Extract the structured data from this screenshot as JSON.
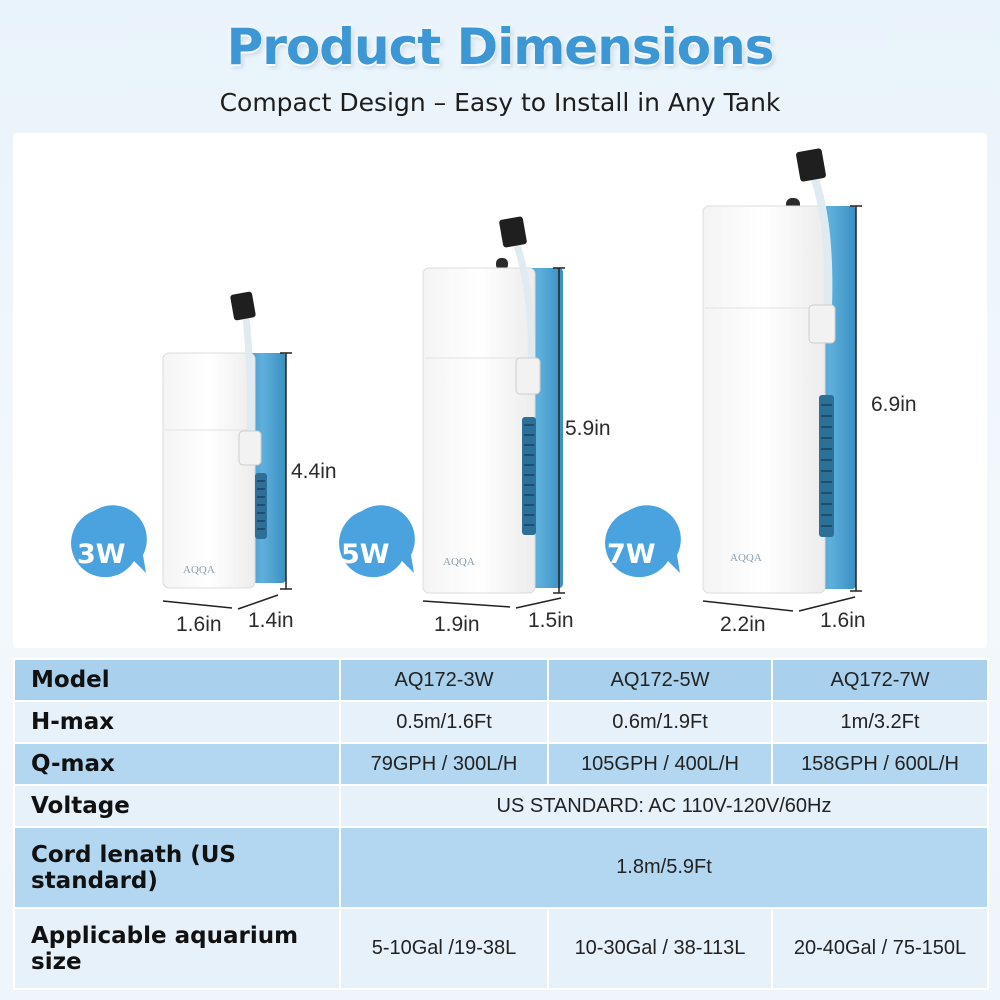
{
  "header": {
    "title": "Product Dimensions",
    "subtitle": "Compact Design – Easy to Install in Any Tank"
  },
  "products": [
    {
      "badge": "3W",
      "height": "4.4in",
      "width": "1.6in",
      "depth": "1.4in",
      "logo": "AQQA"
    },
    {
      "badge": "5W",
      "height": "5.9in",
      "width": "1.9in",
      "depth": "1.5in",
      "logo": "AQQA"
    },
    {
      "badge": "7W",
      "height": "6.9in",
      "width": "2.2in",
      "depth": "1.6in",
      "logo": "AQQA"
    }
  ],
  "colors": {
    "title": "#3d97d4",
    "badge": "#4aa3df",
    "pump_blue": "#4a9fcf",
    "table_dark": "#b3d7f1",
    "table_light": "#e6f1fa"
  },
  "specs": {
    "rows": [
      {
        "label": "Model",
        "values": [
          "AQ172-3W",
          "AQ172-5W",
          "AQ172-7W"
        ]
      },
      {
        "label": "H-max",
        "values": [
          "0.5m/1.6Ft",
          "0.6m/1.9Ft",
          "1m/3.2Ft"
        ]
      },
      {
        "label": "Q-max",
        "values": [
          "79GPH / 300L/H",
          "105GPH / 400L/H",
          "158GPH / 600L/H"
        ]
      },
      {
        "label": "Voltage",
        "merged": "US STANDARD: AC 110V-120V/60Hz"
      },
      {
        "label": "Cord lenath (US standard)",
        "merged": "1.8m/5.9Ft"
      },
      {
        "label": "Applicable aquarium size",
        "values": [
          "5-10Gal /19-38L",
          "10-30Gal / 38-113L",
          "20-40Gal / 75-150L"
        ]
      }
    ]
  }
}
